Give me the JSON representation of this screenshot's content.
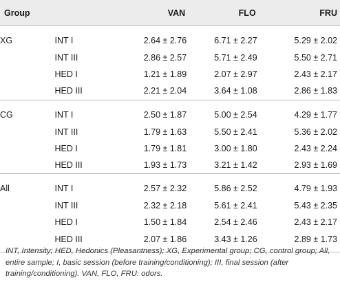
{
  "table": {
    "headers": {
      "group": "Group",
      "sub": "",
      "van": "VAN",
      "flo": "FLO",
      "fru": "FRU"
    },
    "groups": [
      {
        "name": "XG",
        "rows": [
          {
            "label": "INT I",
            "van": "2.64 ± 2.76",
            "flo": "6.71 ± 2.27",
            "fru": "5.29 ± 2.02"
          },
          {
            "label": "INT III",
            "van": "2.86 ± 2.57",
            "flo": "5.71 ± 2.49",
            "fru": "5.50 ± 2.71"
          },
          {
            "label": "HED I",
            "van": "1.21 ± 1.89",
            "flo": "2.07 ± 2.97",
            "fru": "2.43 ± 2.17"
          },
          {
            "label": "HED III",
            "van": "2.21 ± 2.04",
            "flo": "3.64 ± 1.08",
            "fru": "2.86 ± 1.83"
          }
        ]
      },
      {
        "name": "CG",
        "rows": [
          {
            "label": "INT I",
            "van": "2.50 ± 1.87",
            "flo": "5.00 ± 2.54",
            "fru": "4.29 ± 1.77"
          },
          {
            "label": "INT III",
            "van": "1.79 ± 1.63",
            "flo": "5.50 ± 2.41",
            "fru": "5.36 ± 2.02"
          },
          {
            "label": "HED I",
            "van": "1.79 ± 1.81",
            "flo": "3.00 ± 1.80",
            "fru": "2.43 ± 2.24"
          },
          {
            "label": "HED III",
            "van": "1.93 ± 1.73",
            "flo": "3.21 ± 1.42",
            "fru": "2.93 ± 1.69"
          }
        ]
      },
      {
        "name": "All",
        "rows": [
          {
            "label": "INT I",
            "van": "2.57 ± 2.32",
            "flo": "5.86 ± 2.52",
            "fru": "4.79 ± 1.93"
          },
          {
            "label": "INT III",
            "van": "2.32 ± 2.18",
            "flo": "5.61 ± 2.41",
            "fru": "5.43 ± 2.35"
          },
          {
            "label": "HED I",
            "van": "1.50 ± 1.84",
            "flo": "2.54 ± 2.46",
            "fru": "2.43 ± 2.17"
          },
          {
            "label": "HED III",
            "van": "2.07 ± 1.86",
            "flo": "3.43 ± 1.26",
            "fru": "2.89 ± 1.73"
          }
        ]
      }
    ]
  },
  "footnote": "INT, Intensity; HED, Hedonics (Pleasantness); XG, Experimental group; CG, control group; All, entire sample; I, basic session (before training/conditioning); III, final session (after training/conditioning). VAN, FLO, FRU: odors.",
  "colors": {
    "header_bg": "#ececec",
    "rule": "#bdbdbd",
    "text": "#1a1a1a"
  }
}
